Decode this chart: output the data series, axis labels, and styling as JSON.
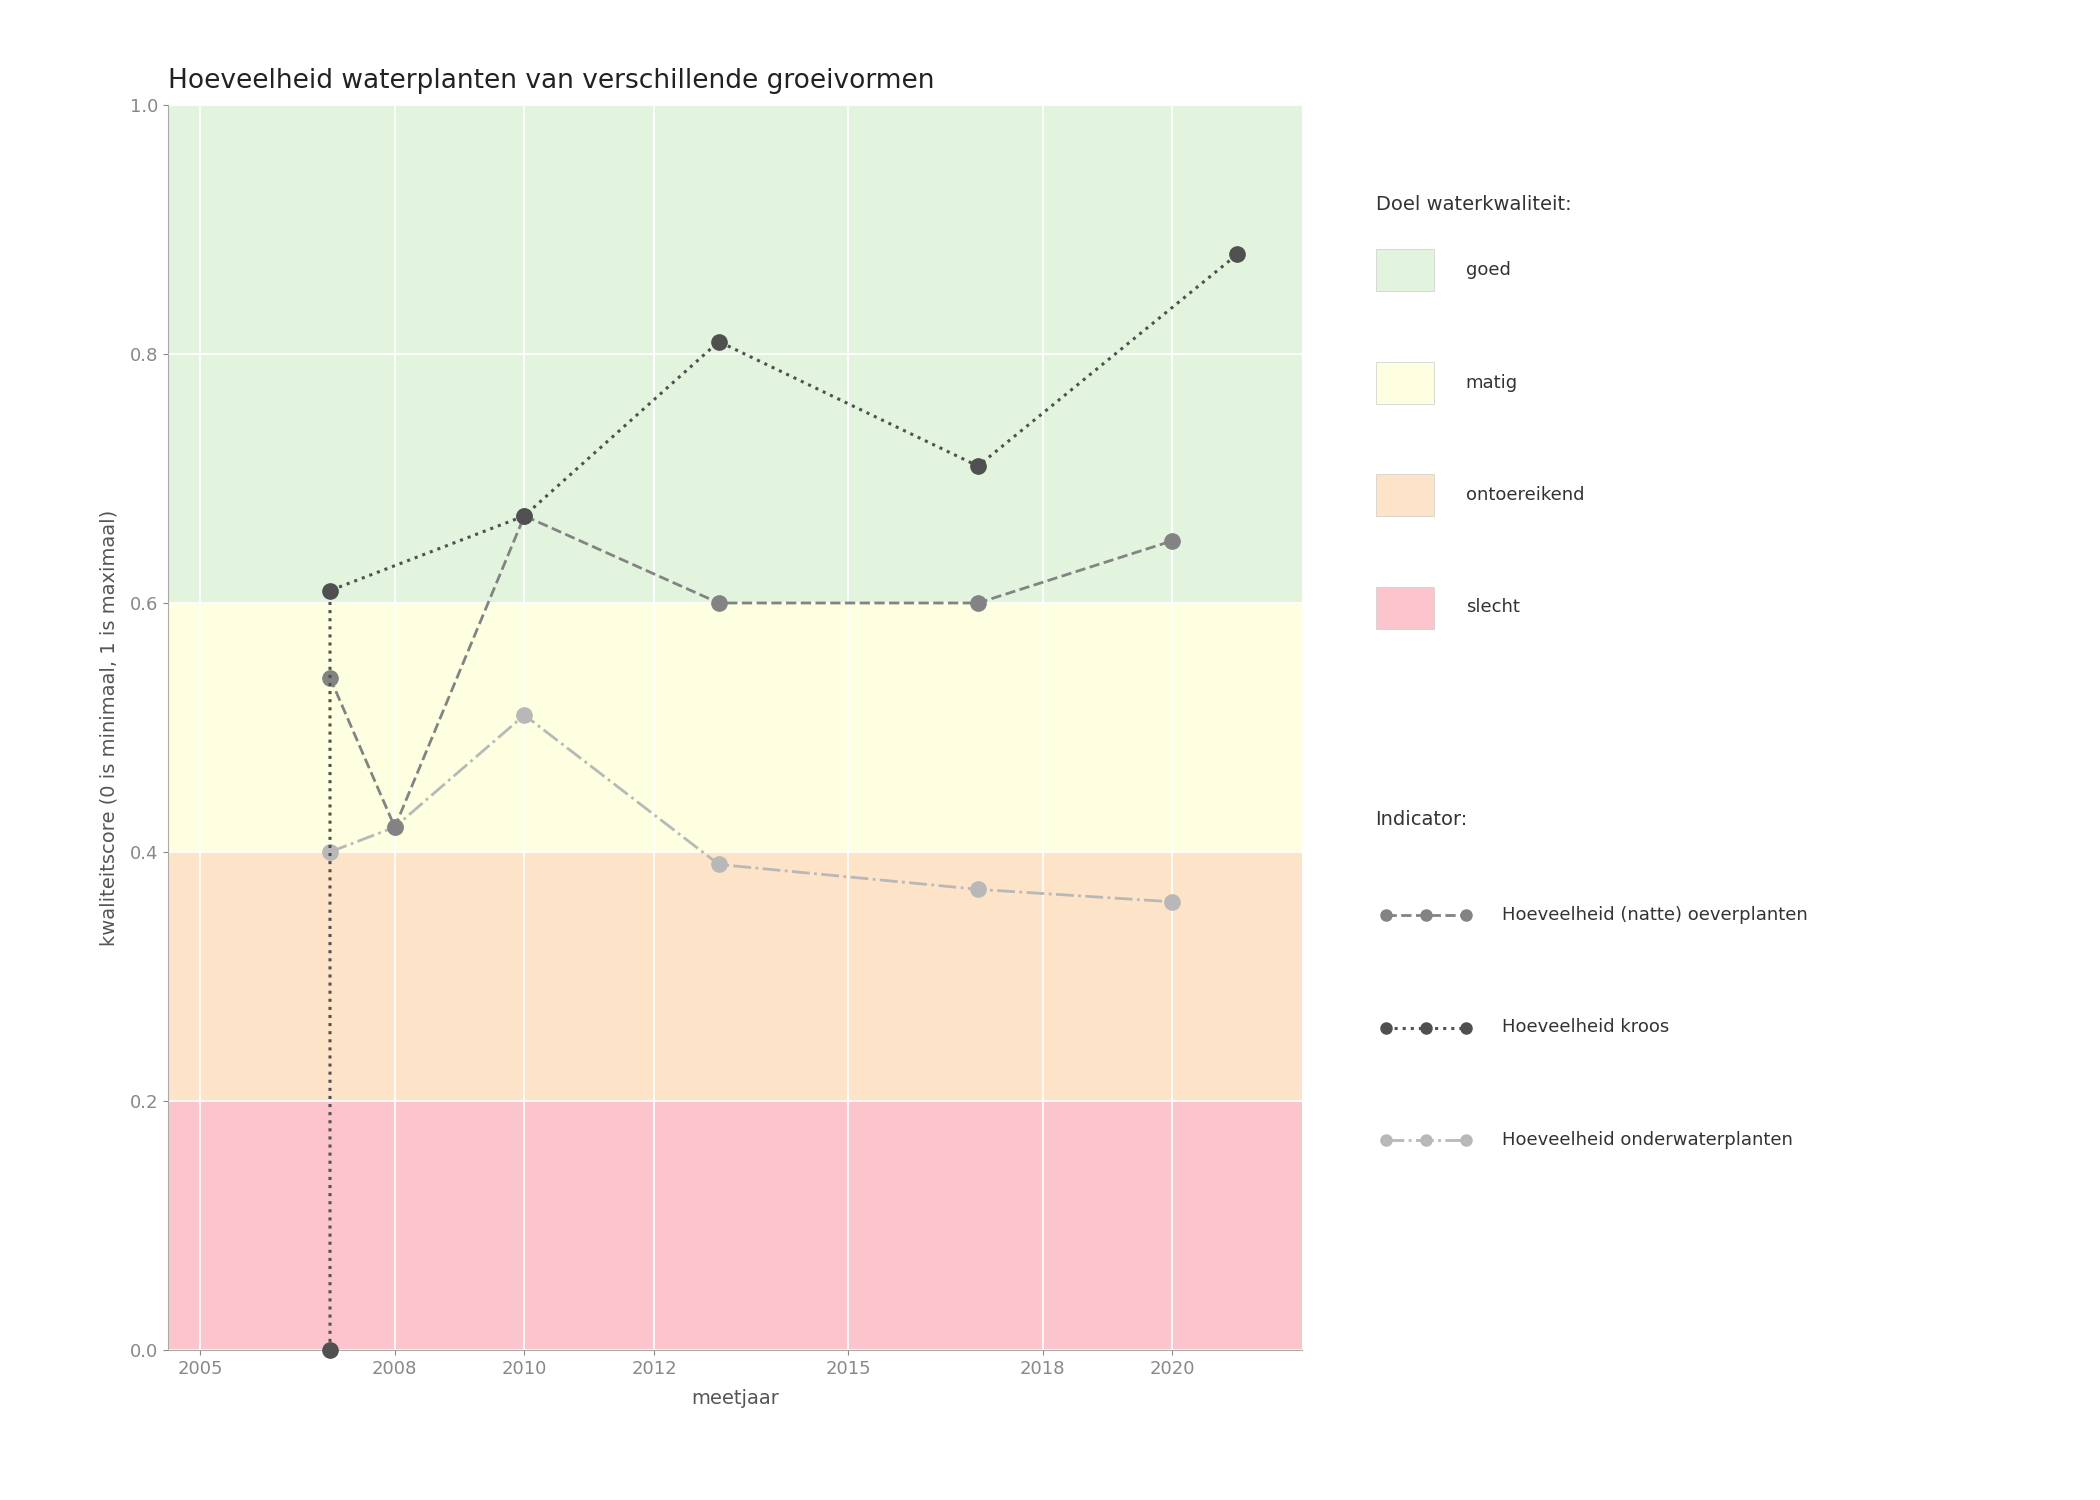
{
  "title": "Hoeveelheid waterplanten van verschillende groeivormen",
  "xlabel": "meetjaar",
  "ylabel": "kwaliteitscore (0 is minimaal, 1 is maximaal)",
  "xlim": [
    2004.5,
    2022.0
  ],
  "ylim": [
    0.0,
    1.0
  ],
  "xticks": [
    2005,
    2008,
    2010,
    2012,
    2015,
    2018,
    2020
  ],
  "yticks": [
    0.0,
    0.2,
    0.4,
    0.6,
    0.8,
    1.0
  ],
  "bg_bands": [
    {
      "ymin": 0.0,
      "ymax": 0.2,
      "color": "#fcc5cd",
      "label": "slecht"
    },
    {
      "ymin": 0.2,
      "ymax": 0.4,
      "color": "#fde4c8",
      "label": "ontoereikend"
    },
    {
      "ymin": 0.4,
      "ymax": 0.6,
      "color": "#fefee0",
      "label": "matig"
    },
    {
      "ymin": 0.6,
      "ymax": 1.0,
      "color": "#e2f4de",
      "label": "goed"
    }
  ],
  "series": [
    {
      "name": "Hoeveelheid (natte) oeverplanten",
      "x": [
        2007,
        2008,
        2010,
        2013,
        2017,
        2020
      ],
      "y": [
        0.54,
        0.42,
        0.67,
        0.6,
        0.6,
        0.65
      ],
      "color": "#838383",
      "linestyle": "--",
      "linewidth": 2.0,
      "markersize": 11,
      "zorder": 3
    },
    {
      "name": "Hoeveelheid kroos",
      "x": [
        2007,
        2007,
        2010,
        2013,
        2017,
        2021
      ],
      "y": [
        0.0,
        0.61,
        0.67,
        0.81,
        0.71,
        0.88
      ],
      "color": "#505050",
      "linestyle": ":",
      "linewidth": 2.2,
      "markersize": 11,
      "zorder": 4
    },
    {
      "name": "Hoeveelheid onderwaterplanten",
      "x": [
        2007,
        2008,
        2010,
        2013,
        2017,
        2020
      ],
      "y": [
        0.4,
        0.42,
        0.51,
        0.39,
        0.37,
        0.36
      ],
      "color": "#b8b8b8",
      "linestyle": "-.",
      "linewidth": 2.0,
      "markersize": 11,
      "zorder": 2
    }
  ],
  "legend_title_quality": "Doel waterkwaliteit:",
  "legend_title_indicator": "Indicator:",
  "background_color": "#ffffff",
  "title_fontsize": 19,
  "label_fontsize": 14,
  "tick_fontsize": 13,
  "legend_fontsize": 13,
  "legend_title_fontsize": 14
}
